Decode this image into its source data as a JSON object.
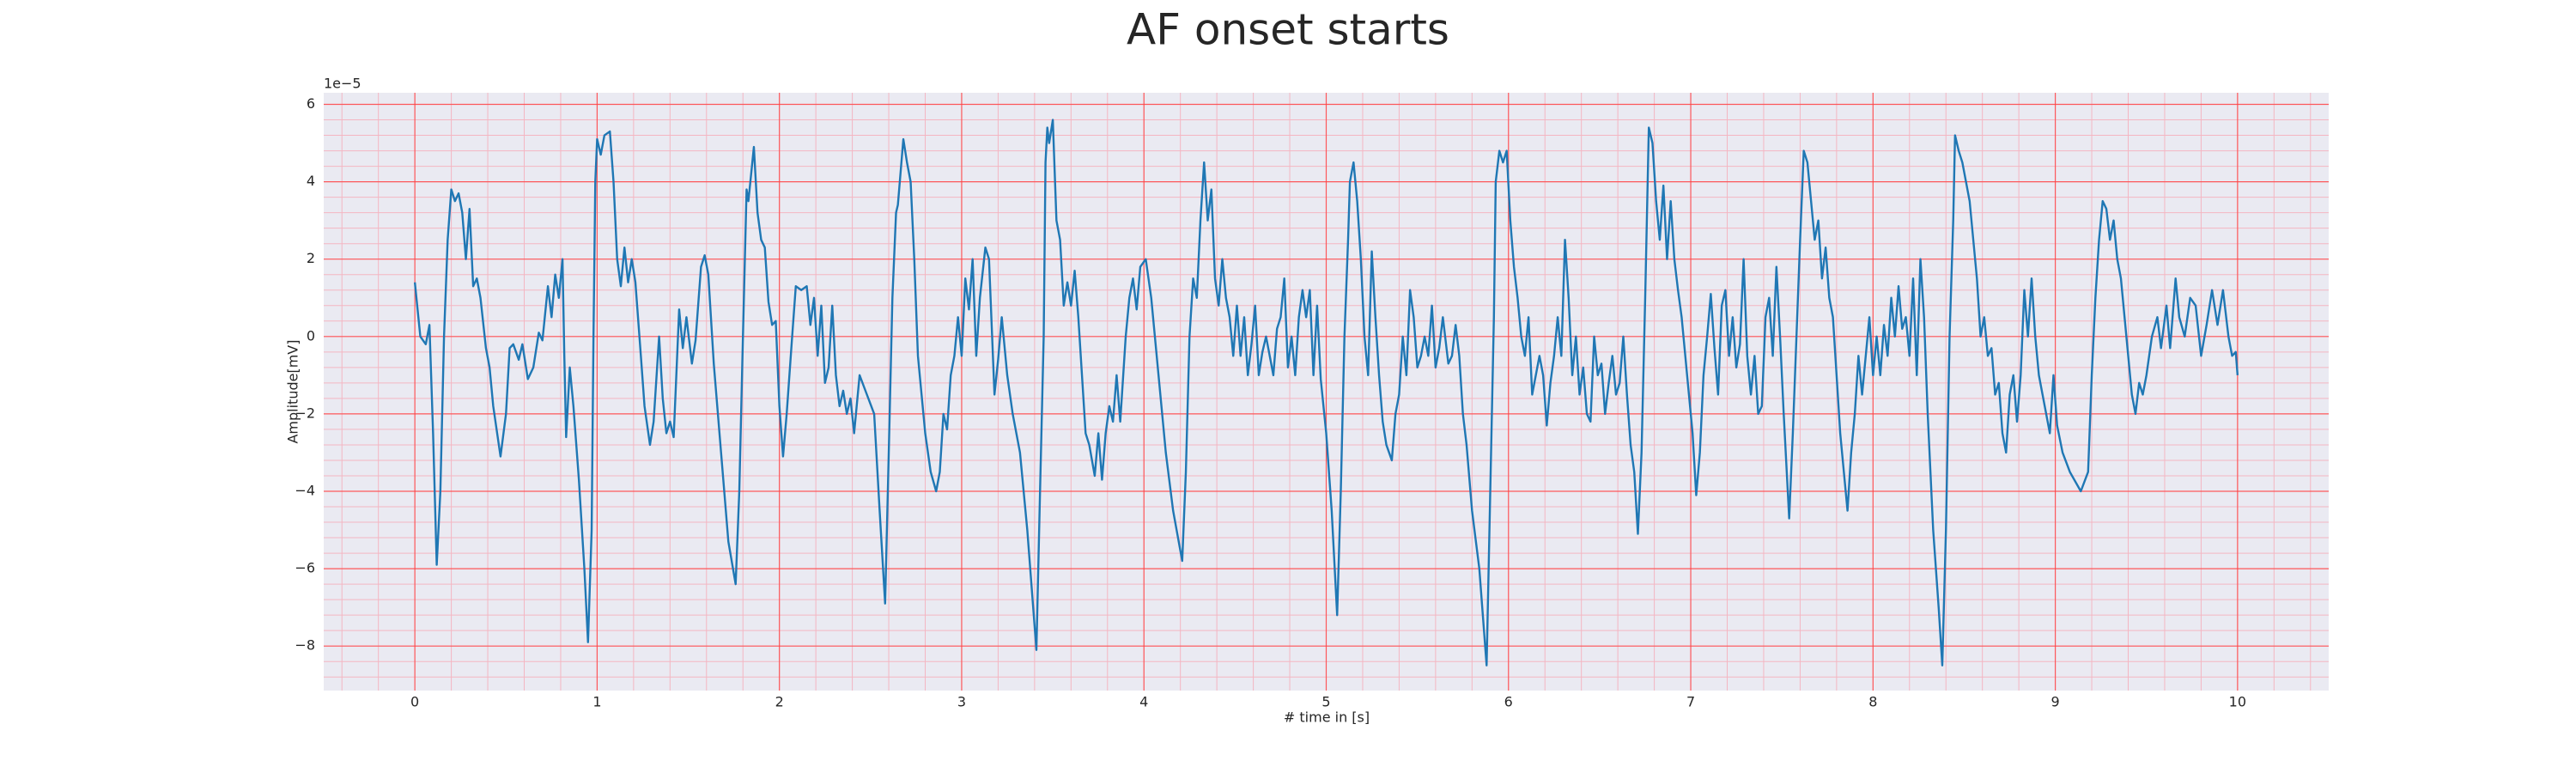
{
  "chart_data": {
    "type": "line",
    "title": "AF onset starts",
    "x_label": "# time in [s]",
    "y_label": "Amplitude[mV]",
    "y_offset_label": "1e−5",
    "color": "#1f77b4",
    "background": "#eaeaf2",
    "grid": true,
    "grid_color": "#ff4040",
    "minor_grid": true,
    "minor_grid_color": "#f4b6c2",
    "xlim": [
      -0.5,
      10.5
    ],
    "ylim": [
      -9.15,
      6.3
    ],
    "xticks": [
      0,
      1,
      2,
      3,
      4,
      5,
      6,
      7,
      8,
      9,
      10
    ],
    "yticks": [
      {
        "value": -8,
        "label": "−8"
      },
      {
        "value": -6,
        "label": "−6"
      },
      {
        "value": -4,
        "label": "−4"
      },
      {
        "value": -2,
        "label": "−2"
      },
      0,
      2,
      4,
      6
    ],
    "x": [
      0,
      0.03,
      0.06,
      0.08,
      0.1,
      0.12,
      0.14,
      0.16,
      0.18,
      0.2,
      0.22,
      0.24,
      0.26,
      0.28,
      0.3,
      0.32,
      0.34,
      0.36,
      0.39,
      0.41,
      0.43,
      0.47,
      0.5,
      0.52,
      0.54,
      0.57,
      0.59,
      0.62,
      0.65,
      0.68,
      0.7,
      0.73,
      0.75,
      0.77,
      0.79,
      0.81,
      0.82,
      0.83,
      0.85,
      0.87,
      0.9,
      0.93,
      0.95,
      0.97,
      0.98,
      0.99,
      1.0,
      1.02,
      1.04,
      1.07,
      1.09,
      1.11,
      1.13,
      1.15,
      1.17,
      1.19,
      1.21,
      1.24,
      1.26,
      1.29,
      1.31,
      1.34,
      1.36,
      1.38,
      1.4,
      1.42,
      1.45,
      1.47,
      1.49,
      1.52,
      1.54,
      1.57,
      1.59,
      1.61,
      1.64,
      1.68,
      1.72,
      1.76,
      1.78,
      1.8,
      1.82,
      1.83,
      1.86,
      1.88,
      1.9,
      1.92,
      1.94,
      1.96,
      1.98,
      2.0,
      2.02,
      2.04,
      2.07,
      2.09,
      2.12,
      2.15,
      2.17,
      2.19,
      2.21,
      2.23,
      2.25,
      2.27,
      2.29,
      2.31,
      2.33,
      2.35,
      2.37,
      2.39,
      2.41,
      2.44,
      2.48,
      2.52,
      2.55,
      2.58,
      2.6,
      2.62,
      2.64,
      2.65,
      2.68,
      2.7,
      2.72,
      2.74,
      2.76,
      2.78,
      2.8,
      2.83,
      2.86,
      2.88,
      2.9,
      2.92,
      2.94,
      2.96,
      2.98,
      3.0,
      3.02,
      3.04,
      3.06,
      3.08,
      3.1,
      3.13,
      3.15,
      3.18,
      3.2,
      3.22,
      3.25,
      3.28,
      3.32,
      3.36,
      3.41,
      3.43,
      3.45,
      3.46,
      3.47,
      3.48,
      3.5,
      3.52,
      3.54,
      3.56,
      3.58,
      3.6,
      3.62,
      3.64,
      3.66,
      3.68,
      3.7,
      3.73,
      3.75,
      3.77,
      3.79,
      3.81,
      3.83,
      3.85,
      3.87,
      3.9,
      3.92,
      3.94,
      3.96,
      3.98,
      4.01,
      4.04,
      4.08,
      4.12,
      4.16,
      4.21,
      4.23,
      4.25,
      4.27,
      4.29,
      4.31,
      4.33,
      4.35,
      4.37,
      4.39,
      4.41,
      4.43,
      4.45,
      4.47,
      4.49,
      4.51,
      4.53,
      4.55,
      4.57,
      4.59,
      4.61,
      4.63,
      4.65,
      4.67,
      4.69,
      4.71,
      4.73,
      4.75,
      4.77,
      4.79,
      4.81,
      4.83,
      4.85,
      4.87,
      4.89,
      4.91,
      4.93,
      4.95,
      4.97,
      5.0,
      5.03,
      5.06,
      5.08,
      5.1,
      5.12,
      5.13,
      5.15,
      5.17,
      5.19,
      5.21,
      5.23,
      5.25,
      5.27,
      5.29,
      5.31,
      5.33,
      5.36,
      5.38,
      5.4,
      5.42,
      5.44,
      5.46,
      5.48,
      5.5,
      5.52,
      5.54,
      5.56,
      5.58,
      5.6,
      5.62,
      5.64,
      5.67,
      5.69,
      5.71,
      5.73,
      5.75,
      5.77,
      5.8,
      5.84,
      5.88,
      5.9,
      5.92,
      5.93,
      5.95,
      5.97,
      5.99,
      6.01,
      6.03,
      6.05,
      6.07,
      6.09,
      6.11,
      6.13,
      6.15,
      6.17,
      6.19,
      6.21,
      6.23,
      6.25,
      6.27,
      6.29,
      6.31,
      6.33,
      6.35,
      6.37,
      6.39,
      6.41,
      6.43,
      6.45,
      6.47,
      6.49,
      6.51,
      6.53,
      6.55,
      6.57,
      6.59,
      6.61,
      6.63,
      6.65,
      6.67,
      6.69,
      6.71,
      6.73,
      6.75,
      6.77,
      6.79,
      6.81,
      6.83,
      6.85,
      6.87,
      6.89,
      6.91,
      6.93,
      6.95,
      6.97,
      6.99,
      7.01,
      7.03,
      7.05,
      7.07,
      7.09,
      7.11,
      7.13,
      7.15,
      7.17,
      7.19,
      7.21,
      7.23,
      7.25,
      7.27,
      7.29,
      7.31,
      7.33,
      7.35,
      7.37,
      7.39,
      7.41,
      7.43,
      7.45,
      7.47,
      7.49,
      7.51,
      7.54,
      7.56,
      7.58,
      7.6,
      7.62,
      7.64,
      7.66,
      7.68,
      7.7,
      7.72,
      7.74,
      7.76,
      7.78,
      7.8,
      7.82,
      7.84,
      7.86,
      7.88,
      7.9,
      7.92,
      7.94,
      7.96,
      7.98,
      8.0,
      8.02,
      8.04,
      8.06,
      8.08,
      8.1,
      8.12,
      8.14,
      8.16,
      8.18,
      8.2,
      8.22,
      8.24,
      8.26,
      8.28,
      8.3,
      8.33,
      8.36,
      8.38,
      8.4,
      8.42,
      8.44,
      8.45,
      8.47,
      8.49,
      8.51,
      8.53,
      8.55,
      8.57,
      8.59,
      8.61,
      8.63,
      8.65,
      8.67,
      8.69,
      8.71,
      8.73,
      8.75,
      8.77,
      8.79,
      8.81,
      8.83,
      8.85,
      8.87,
      8.89,
      8.91,
      8.93,
      8.95,
      8.97,
      8.99,
      9.01,
      9.04,
      9.08,
      9.14,
      9.18,
      9.2,
      9.22,
      9.24,
      9.26,
      9.28,
      9.3,
      9.32,
      9.34,
      9.36,
      9.38,
      9.4,
      9.42,
      9.44,
      9.46,
      9.48,
      9.5,
      9.53,
      9.56,
      9.58,
      9.61,
      9.63,
      9.66,
      9.68,
      9.71,
      9.74,
      9.77,
      9.8,
      9.83,
      9.86,
      9.89,
      9.92,
      9.95,
      9.97,
      9.99,
      10.0
    ],
    "values": [
      1.4,
      0.0,
      -0.2,
      0.3,
      -2.5,
      -5.9,
      -4.0,
      0.0,
      2.5,
      3.8,
      3.5,
      3.7,
      3.2,
      2.0,
      3.3,
      1.3,
      1.5,
      1.0,
      -0.3,
      -0.8,
      -1.8,
      -3.1,
      -2.0,
      -0.3,
      -0.2,
      -0.6,
      -0.2,
      -1.1,
      -0.8,
      0.1,
      -0.1,
      1.3,
      0.5,
      1.6,
      1.0,
      2.0,
      -0.5,
      -2.6,
      -0.8,
      -1.8,
      -3.7,
      -6.0,
      -7.9,
      -5.0,
      0.0,
      4.0,
      5.1,
      4.7,
      5.2,
      5.3,
      4.0,
      2.0,
      1.3,
      2.3,
      1.4,
      2.0,
      1.4,
      -0.5,
      -1.8,
      -2.8,
      -2.2,
      0.0,
      -1.6,
      -2.5,
      -2.2,
      -2.6,
      0.7,
      -0.3,
      0.5,
      -0.7,
      -0.1,
      1.8,
      2.1,
      1.6,
      -0.7,
      -3.0,
      -5.3,
      -6.4,
      -4.0,
      0.0,
      3.8,
      3.5,
      4.9,
      3.2,
      2.5,
      2.3,
      0.9,
      0.3,
      0.4,
      -1.8,
      -3.1,
      -2.0,
      0.0,
      1.3,
      1.2,
      1.3,
      0.3,
      1.0,
      -0.5,
      0.8,
      -1.2,
      -0.8,
      0.8,
      -1.0,
      -1.8,
      -1.4,
      -2.0,
      -1.6,
      -2.5,
      -1.0,
      -1.5,
      -2.0,
      -4.5,
      -6.9,
      -3.0,
      1.0,
      3.2,
      3.4,
      5.1,
      4.5,
      4.0,
      2.0,
      -0.5,
      -1.5,
      -2.5,
      -3.5,
      -4.0,
      -3.5,
      -2.0,
      -2.4,
      -1.0,
      -0.5,
      0.5,
      -0.5,
      1.5,
      0.7,
      2.0,
      -0.5,
      1.0,
      2.3,
      2.0,
      -1.5,
      -0.6,
      0.5,
      -1.0,
      -2.0,
      -3.0,
      -5.0,
      -8.1,
      -4.0,
      0.0,
      4.5,
      5.4,
      5.0,
      5.6,
      3.0,
      2.5,
      0.8,
      1.4,
      0.8,
      1.7,
      0.5,
      -1.0,
      -2.5,
      -2.8,
      -3.6,
      -2.5,
      -3.7,
      -2.5,
      -1.8,
      -2.2,
      -1.0,
      -2.2,
      0.0,
      1.0,
      1.5,
      0.7,
      1.8,
      2.0,
      1.0,
      -1.0,
      -3.0,
      -4.5,
      -5.8,
      -3.5,
      0.0,
      1.5,
      1.0,
      3.0,
      4.5,
      3.0,
      3.8,
      1.5,
      0.8,
      2.0,
      1.0,
      0.5,
      -0.5,
      0.8,
      -0.5,
      0.5,
      -1.0,
      -0.2,
      0.8,
      -1.0,
      -0.4,
      0.0,
      -0.5,
      -1.0,
      0.2,
      0.5,
      1.5,
      -0.8,
      0.0,
      -1.0,
      0.5,
      1.2,
      0.5,
      1.2,
      -1.0,
      0.8,
      -1.1,
      -2.5,
      -4.5,
      -7.2,
      -4.0,
      0.0,
      2.5,
      4.0,
      4.5,
      3.5,
      2.0,
      0.0,
      -1.0,
      2.2,
      0.5,
      -1.0,
      -2.2,
      -2.8,
      -3.2,
      -2.0,
      -1.5,
      0.0,
      -1.0,
      1.2,
      0.5,
      -0.8,
      -0.5,
      0.0,
      -0.5,
      0.8,
      -0.8,
      -0.3,
      0.5,
      -0.7,
      -0.5,
      0.3,
      -0.5,
      -2.0,
      -2.8,
      -4.5,
      -6.0,
      -8.5,
      -4.0,
      0.5,
      4.0,
      4.8,
      4.5,
      4.8,
      3.0,
      1.8,
      1.0,
      0.0,
      -0.5,
      0.5,
      -1.5,
      -1.0,
      -0.5,
      -1.0,
      -2.3,
      -1.2,
      -0.5,
      0.5,
      -0.5,
      2.5,
      1.0,
      -1.0,
      0.0,
      -1.5,
      -0.8,
      -2.0,
      -2.2,
      0.0,
      -1.0,
      -0.7,
      -2.0,
      -1.2,
      -0.5,
      -1.5,
      -1.2,
      0.0,
      -1.5,
      -2.8,
      -3.5,
      -5.1,
      -3.0,
      1.0,
      5.4,
      5.0,
      3.5,
      2.5,
      3.9,
      2.0,
      3.5,
      2.0,
      1.2,
      0.5,
      -0.5,
      -1.5,
      -2.5,
      -4.1,
      -3.0,
      -1.0,
      0.0,
      1.1,
      -0.3,
      -1.5,
      0.8,
      1.2,
      -0.5,
      0.5,
      -0.8,
      -0.2,
      2.0,
      -0.5,
      -1.5,
      -0.5,
      -2.0,
      -1.8,
      0.5,
      1.0,
      -0.5,
      1.8,
      0.0,
      -2.0,
      -4.7,
      -2.5,
      0.0,
      2.5,
      4.8,
      4.5,
      3.5,
      2.5,
      3.0,
      1.5,
      2.3,
      1.0,
      0.5,
      -1.0,
      -2.5,
      -3.5,
      -4.5,
      -3.0,
      -2.0,
      -0.5,
      -1.5,
      -0.5,
      0.5,
      -1.0,
      0.0,
      -1.0,
      0.3,
      -0.5,
      1.0,
      0.0,
      1.3,
      0.2,
      0.5,
      -0.5,
      1.5,
      -1.0,
      2.0,
      0.5,
      -2.0,
      -5.0,
      -7.0,
      -8.5,
      -5.0,
      0.0,
      3.0,
      5.2,
      4.8,
      4.5,
      4.0,
      3.5,
      2.5,
      1.5,
      0.0,
      0.5,
      -0.5,
      -0.3,
      -1.5,
      -1.2,
      -2.5,
      -3.0,
      -1.5,
      -1.0,
      -2.2,
      -1.0,
      1.2,
      0.0,
      1.5,
      0.0,
      -1.0,
      -1.5,
      -2.0,
      -2.5,
      -1.0,
      -2.3,
      -3.0,
      -3.5,
      -4.0,
      -3.5,
      -1.0,
      1.0,
      2.5,
      3.5,
      3.3,
      2.5,
      3.0,
      2.0,
      1.5,
      0.5,
      -0.5,
      -1.5,
      -2.0,
      -1.2,
      -1.5,
      -1.0,
      0.0,
      0.5,
      -0.3,
      0.8,
      -0.3,
      1.5,
      0.5,
      0.0,
      1.0,
      0.8,
      -0.5,
      0.3,
      1.2,
      0.3,
      1.2,
      0.0,
      -0.5,
      -0.4,
      -1.0
    ]
  }
}
